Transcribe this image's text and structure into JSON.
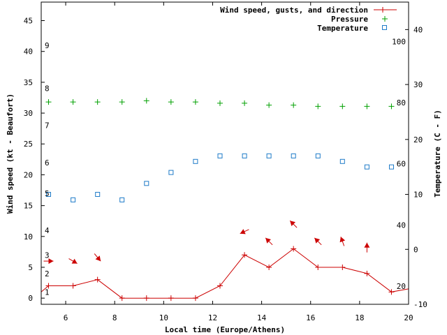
{
  "chart_data": {
    "type": "line",
    "xlabel": "Local time (Europe/Athens)",
    "ylabel_left": "Wind speed (kt - Beaufort)",
    "ylabel_right": "Temperature (C - F)",
    "xlim": [
      5,
      20
    ],
    "ylim_left": [
      -1,
      48
    ],
    "ylim_right": [
      -10,
      45
    ],
    "x_ticks": [
      6,
      8,
      10,
      12,
      14,
      16,
      18,
      20
    ],
    "y_left_ticks": [
      0,
      5,
      10,
      15,
      20,
      25,
      30,
      35,
      40,
      45
    ],
    "y_right_ticks": [
      -10,
      0,
      10,
      20,
      30,
      40
    ],
    "beaufort_labels": [
      {
        "label": "1",
        "kt": 1
      },
      {
        "label": "2",
        "kt": 4
      },
      {
        "label": "3",
        "kt": 7
      },
      {
        "label": "4",
        "kt": 11
      },
      {
        "label": "5",
        "kt": 17
      },
      {
        "label": "6",
        "kt": 22
      },
      {
        "label": "7",
        "kt": 28
      },
      {
        "label": "8",
        "kt": 34
      },
      {
        "label": "9",
        "kt": 41
      }
    ],
    "fahrenheit_labels": [
      {
        "label": "20",
        "celsius": -6.7
      },
      {
        "label": "40",
        "celsius": 4.4
      },
      {
        "label": "60",
        "celsius": 15.6
      },
      {
        "label": "80",
        "celsius": 26.7
      },
      {
        "label": "100",
        "celsius": 37.8
      }
    ],
    "legend": [
      {
        "name": "Wind speed, gusts, and direction",
        "color": "#cc0000",
        "marker": "plus-line"
      },
      {
        "name": "Pressure",
        "color": "#00a000",
        "marker": "plus"
      },
      {
        "name": "Temperature",
        "color": "#1e7bc8",
        "marker": "square"
      }
    ],
    "series": {
      "wind": {
        "x": [
          5.0,
          5.3,
          6.3,
          7.3,
          8.3,
          9.3,
          10.3,
          11.3,
          12.3,
          13.3,
          14.3,
          15.3,
          16.3,
          17.3,
          18.3,
          19.3,
          20.0
        ],
        "y": [
          1,
          2,
          2,
          3,
          0,
          0,
          0,
          0,
          2,
          7,
          5,
          8,
          5,
          5,
          4,
          1,
          1.5
        ]
      },
      "wind_direction": {
        "x": [
          5.3,
          6.3,
          7.3,
          13.3,
          14.3,
          15.3,
          16.3,
          17.3,
          18.3
        ],
        "y_kt": [
          6,
          6,
          6.6,
          10.8,
          9.2,
          12,
          9.2,
          9.2,
          8.2
        ],
        "to_deg": [
          90,
          120,
          140,
          245,
          315,
          315,
          315,
          340,
          0
        ]
      },
      "pressure": {
        "x": [
          5.3,
          6.3,
          7.3,
          8.3,
          9.3,
          10.3,
          11.3,
          12.3,
          13.3,
          14.3,
          15.3,
          16.3,
          17.3,
          18.3,
          19.3
        ],
        "y_kt": [
          31.8,
          31.8,
          31.8,
          31.8,
          32.0,
          31.8,
          31.8,
          31.6,
          31.6,
          31.3,
          31.3,
          31.1,
          31.1,
          31.1,
          31.1
        ]
      },
      "temperature": {
        "x": [
          5.3,
          6.3,
          7.3,
          8.3,
          9.3,
          10.3,
          11.3,
          12.3,
          13.3,
          14.3,
          15.3,
          16.3,
          17.3,
          18.3,
          19.3
        ],
        "y_c": [
          10,
          9,
          10,
          9,
          12,
          14,
          16,
          17,
          17,
          17,
          17,
          17,
          16,
          15,
          15
        ]
      }
    }
  }
}
